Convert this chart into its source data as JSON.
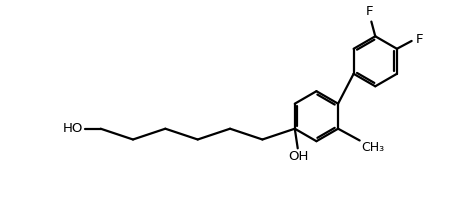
{
  "background": "#ffffff",
  "line_color": "#000000",
  "lw": 1.6,
  "font_size": 9.5,
  "fig_width": 4.75,
  "fig_height": 1.98,
  "dpi": 100,
  "xlim": [
    0,
    4.75
  ],
  "ylim": [
    0,
    1.98
  ]
}
